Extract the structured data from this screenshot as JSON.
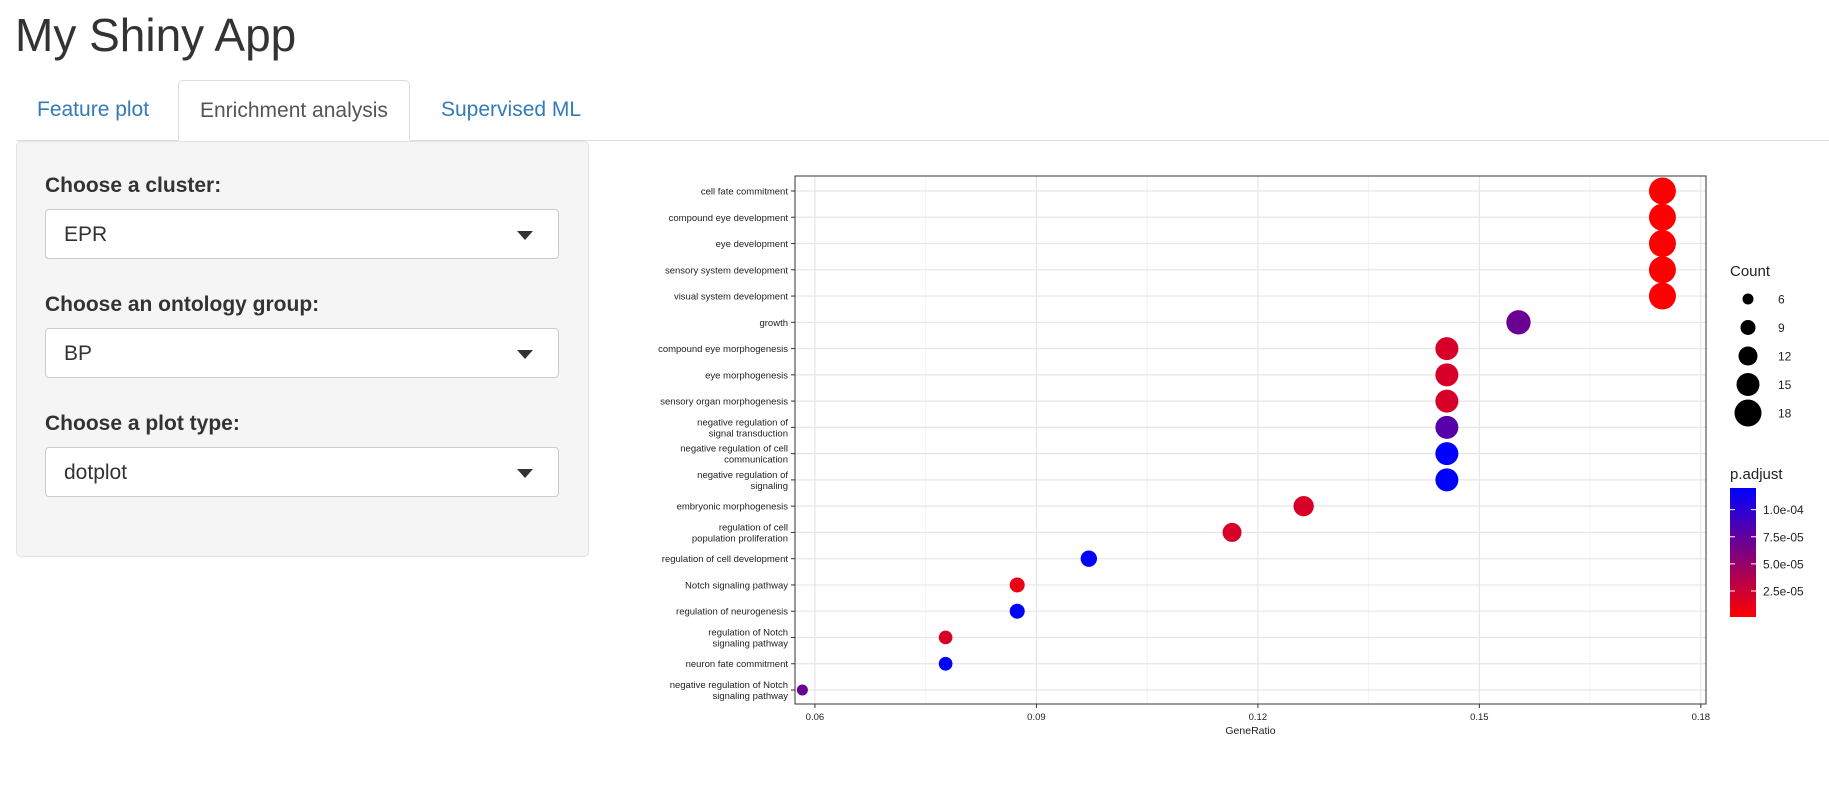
{
  "app": {
    "title": "My Shiny App"
  },
  "tabs": [
    {
      "label": "Feature plot",
      "active": false
    },
    {
      "label": "Enrichment analysis",
      "active": true
    },
    {
      "label": "Supervised ML",
      "active": false
    }
  ],
  "sidebar": {
    "cluster": {
      "label": "Choose a cluster:",
      "value": "EPR"
    },
    "ontology": {
      "label": "Choose an ontology group:",
      "value": "BP"
    },
    "plot_type": {
      "label": "Choose a plot type:",
      "value": "dotplot"
    }
  },
  "icons": {
    "select_caret": "caret-down-icon"
  },
  "colors": {
    "link": "#337ab7",
    "padj_low": "#ff0000",
    "padj_high": "#0000ff"
  },
  "chart_data": {
    "type": "scatter",
    "xlabel": "GeneRatio",
    "ylabel": "",
    "x_ticks": [
      "0.06",
      "0.09",
      "0.12",
      "0.15",
      "0.18"
    ],
    "xlim": [
      0.0573,
      0.1807
    ],
    "grid": true,
    "points": [
      {
        "term": "cell fate commitment",
        "term_lines": [
          "cell fate commitment"
        ],
        "gene_ratio": 0.1748,
        "count": 18,
        "p_adjust": 1e-06
      },
      {
        "term": "compound eye development",
        "term_lines": [
          "compound eye development"
        ],
        "gene_ratio": 0.1748,
        "count": 18,
        "p_adjust": 1e-06
      },
      {
        "term": "eye development",
        "term_lines": [
          "eye development"
        ],
        "gene_ratio": 0.1748,
        "count": 18,
        "p_adjust": 1e-06
      },
      {
        "term": "sensory system development",
        "term_lines": [
          "sensory system development"
        ],
        "gene_ratio": 0.1748,
        "count": 18,
        "p_adjust": 1e-06
      },
      {
        "term": "visual system development",
        "term_lines": [
          "visual system development"
        ],
        "gene_ratio": 0.1748,
        "count": 18,
        "p_adjust": 1e-06
      },
      {
        "term": "growth",
        "term_lines": [
          "growth"
        ],
        "gene_ratio": 0.1553,
        "count": 16,
        "p_adjust": 7e-05
      },
      {
        "term": "compound eye morphogenesis",
        "term_lines": [
          "compound eye morphogenesis"
        ],
        "gene_ratio": 0.1456,
        "count": 15,
        "p_adjust": 2e-05
      },
      {
        "term": "eye morphogenesis",
        "term_lines": [
          "eye morphogenesis"
        ],
        "gene_ratio": 0.1456,
        "count": 15,
        "p_adjust": 2e-05
      },
      {
        "term": "sensory organ morphogenesis",
        "term_lines": [
          "sensory organ morphogenesis"
        ],
        "gene_ratio": 0.1456,
        "count": 15,
        "p_adjust": 2e-05
      },
      {
        "term": "negative regulation of signal transduction",
        "term_lines": [
          "negative regulation of",
          "signal transduction"
        ],
        "gene_ratio": 0.1456,
        "count": 15,
        "p_adjust": 8e-05
      },
      {
        "term": "negative regulation of cell communication",
        "term_lines": [
          "negative regulation of cell",
          "communication"
        ],
        "gene_ratio": 0.1456,
        "count": 15,
        "p_adjust": 0.00012
      },
      {
        "term": "negative regulation of signaling",
        "term_lines": [
          "negative regulation of",
          "signaling"
        ],
        "gene_ratio": 0.1456,
        "count": 15,
        "p_adjust": 0.00012
      },
      {
        "term": "embryonic morphogenesis",
        "term_lines": [
          "embryonic morphogenesis"
        ],
        "gene_ratio": 0.1262,
        "count": 13,
        "p_adjust": 2e-05
      },
      {
        "term": "regulation of cell population proliferation",
        "term_lines": [
          "regulation of cell",
          "population proliferation"
        ],
        "gene_ratio": 0.1165,
        "count": 12,
        "p_adjust": 2e-05
      },
      {
        "term": "regulation of cell development",
        "term_lines": [
          "regulation of cell development"
        ],
        "gene_ratio": 0.0971,
        "count": 10,
        "p_adjust": 0.00012
      },
      {
        "term": "Notch signaling pathway",
        "term_lines": [
          "Notch signaling pathway"
        ],
        "gene_ratio": 0.0874,
        "count": 9,
        "p_adjust": 1e-05
      },
      {
        "term": "regulation of neurogenesis",
        "term_lines": [
          "regulation of neurogenesis"
        ],
        "gene_ratio": 0.0874,
        "count": 9,
        "p_adjust": 0.00012
      },
      {
        "term": "regulation of Notch signaling pathway",
        "term_lines": [
          "regulation of Notch",
          "signaling pathway"
        ],
        "gene_ratio": 0.0777,
        "count": 8,
        "p_adjust": 2e-05
      },
      {
        "term": "neuron fate commitment",
        "term_lines": [
          "neuron fate commitment"
        ],
        "gene_ratio": 0.0777,
        "count": 8,
        "p_adjust": 0.00012
      },
      {
        "term": "negative regulation of Notch signaling pathway",
        "term_lines": [
          "negative regulation of Notch",
          "signaling pathway"
        ],
        "gene_ratio": 0.0583,
        "count": 6,
        "p_adjust": 7e-05
      }
    ],
    "legend": {
      "position": "right",
      "size_title": "Count",
      "size_breaks": [
        {
          "label": "6",
          "value": 6
        },
        {
          "label": "9",
          "value": 9
        },
        {
          "label": "12",
          "value": 12
        },
        {
          "label": "15",
          "value": 15
        },
        {
          "label": "18",
          "value": 18
        }
      ],
      "color_title": "p.adjust",
      "color_breaks": [
        {
          "label": "1.0e-04",
          "value": 0.0001
        },
        {
          "label": "7.5e-05",
          "value": 7.5e-05
        },
        {
          "label": "5.0e-05",
          "value": 5e-05
        },
        {
          "label": "2.5e-05",
          "value": 2.5e-05
        }
      ],
      "color_range": [
        1e-06,
        0.00012
      ]
    }
  }
}
